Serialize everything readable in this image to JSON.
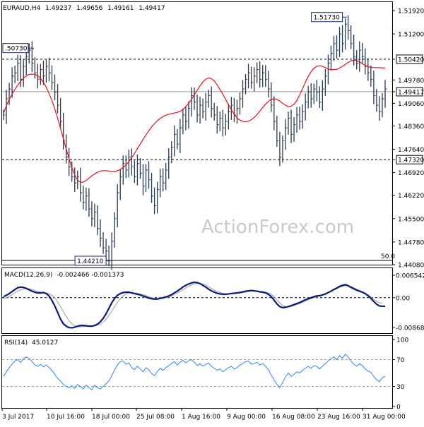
{
  "chart_data": [
    {
      "type": "line",
      "panel": "price",
      "title": "EURAUD,H4",
      "ohlc": {
        "open": "1.49237",
        "high": "1.49656",
        "low": "1.49161",
        "close": "1.49417"
      },
      "y_tick_labels": [
        "1.51920",
        "1.51200",
        "1.50420",
        "1.49780",
        "1.49417",
        "1.49060",
        "1.48360",
        "1.47640",
        "1.47320",
        "1.46920",
        "1.46220",
        "1.45500",
        "1.44780",
        "1.44080"
      ],
      "ylim": [
        1.4408,
        1.5192
      ],
      "fib_label": "50.0",
      "levels": [
        {
          "label": "1.50420",
          "value": 1.5042,
          "style": "dashed"
        },
        {
          "label": "1.47320",
          "value": 1.4732,
          "style": "dashed"
        },
        {
          "label": "1.49417",
          "value": 1.49417,
          "style": "solid"
        }
      ],
      "annotations": [
        {
          "label": "1.51730",
          "x_index": 120,
          "value": 1.5173
        },
        {
          "label": ".50730",
          "x_index": 10,
          "value": 1.5073
        },
        {
          "label": "1.44210",
          "x_index": 37,
          "value": 1.4421
        }
      ],
      "series": [
        {
          "kind": "close",
          "values": [
            1.487,
            1.492,
            1.495,
            1.499,
            1.5,
            1.503,
            1.498,
            1.502,
            1.505,
            1.507,
            1.503,
            1.5,
            1.498,
            1.501,
            1.499,
            1.502,
            1.5,
            1.497,
            1.494,
            1.49,
            1.485,
            1.479,
            1.474,
            1.471,
            1.468,
            1.466,
            1.468,
            1.463,
            1.46,
            1.462,
            1.458,
            1.455,
            1.457,
            1.452,
            1.449,
            1.446,
            1.445,
            1.442,
            1.448,
            1.455,
            1.463,
            1.468,
            1.472,
            1.47,
            1.474,
            1.471,
            1.468,
            1.472,
            1.469,
            1.465,
            1.47,
            1.467,
            1.462,
            1.459,
            1.464,
            1.468,
            1.466,
            1.47,
            1.474,
            1.477,
            1.481,
            1.478,
            1.483,
            1.487,
            1.485,
            1.489,
            1.493,
            1.491,
            1.487,
            1.49,
            1.488,
            1.491,
            1.493,
            1.489,
            1.487,
            1.484,
            1.486,
            1.483,
            1.485,
            1.488,
            1.49,
            1.487,
            1.489,
            1.492,
            1.495,
            1.498,
            1.5,
            1.497,
            1.499,
            1.501,
            1.498,
            1.5,
            1.498,
            1.495,
            1.49,
            1.485,
            1.479,
            1.474,
            1.479,
            1.483,
            1.486,
            1.481,
            1.484,
            1.487,
            1.485,
            1.488,
            1.491,
            1.494,
            1.492,
            1.495,
            1.494,
            1.491,
            1.495,
            1.499,
            1.503,
            1.506,
            1.509,
            1.507,
            1.512,
            1.509,
            1.515,
            1.513,
            1.509,
            1.505,
            1.503,
            1.507,
            1.505,
            1.502,
            1.5,
            1.498,
            1.493,
            1.49,
            1.488,
            1.492,
            1.495
          ]
        },
        {
          "name": "MA",
          "kind": "moving-average",
          "color": "#e8101c",
          "values": [
            1.4875,
            1.4899,
            1.4918,
            1.4934,
            1.4949,
            1.4962,
            1.4974,
            1.4983,
            1.4991,
            1.4995,
            1.4996,
            1.4995,
            1.4991,
            1.4983,
            1.4971,
            1.4955,
            1.4936,
            1.4914,
            1.4888,
            1.486,
            1.4829,
            1.4797,
            1.4765,
            1.4735,
            1.4708,
            1.4685,
            1.4669,
            1.4662,
            1.4663,
            1.4668,
            1.4675,
            1.4682,
            1.4688,
            1.4693,
            1.4697,
            1.4698,
            1.4698,
            1.4697,
            1.4695,
            1.4695,
            1.4698,
            1.4702,
            1.4708,
            1.4716,
            1.4726,
            1.4738,
            1.4751,
            1.4766,
            1.478,
            1.4795,
            1.4808,
            1.4821,
            1.4833,
            1.4843,
            1.4852,
            1.4859,
            1.4865,
            1.4869,
            1.4872,
            1.4874,
            1.4876,
            1.4878,
            1.4881,
            1.4887,
            1.4896,
            1.4906,
            1.4918,
            1.4932,
            1.4946,
            1.496,
            1.4972,
            1.498,
            1.4984,
            1.4982,
            1.4975,
            1.4963,
            1.4949,
            1.4934,
            1.4918,
            1.4902,
            1.4886,
            1.4872,
            1.4861,
            1.4854,
            1.485,
            1.4849,
            1.4851,
            1.4855,
            1.4862,
            1.4871,
            1.4882,
            1.4893,
            1.4903,
            1.4912,
            1.4918,
            1.492,
            1.4918,
            1.4913,
            1.4906,
            1.49,
            1.4896,
            1.4897,
            1.4903,
            1.4915,
            1.4932,
            1.4951,
            1.4971,
            1.4989,
            1.5004,
            1.5014,
            1.502,
            1.5022,
            1.502,
            1.5016,
            1.5012,
            1.501,
            1.501,
            1.5011,
            1.5015,
            1.502,
            1.5026,
            1.5032,
            1.5037,
            1.5039,
            1.5038,
            1.5034,
            1.5028,
            1.5023,
            1.5019,
            1.5017,
            1.5016,
            1.5016,
            1.5016,
            1.5015,
            1.5015
          ]
        }
      ]
    },
    {
      "type": "line",
      "panel": "macd",
      "title": "MACD(12,26,9)",
      "readout": "-0.002466 -0.001373",
      "y_tick_labels": [
        "0.006542",
        "0.00",
        "-0.008684"
      ],
      "ylim": [
        -0.008684,
        0.006542
      ],
      "series": [
        {
          "name": "MACD",
          "kind": "main",
          "color": "#0a1a7a",
          "values": [
            0.0003,
            0.0007,
            0.0012,
            0.0018,
            0.0024,
            0.0029,
            0.0031,
            0.003,
            0.0027,
            0.0023,
            0.0019,
            0.0016,
            0.0014,
            0.0014,
            0.0015,
            0.0012,
            0.0005,
            -0.0008,
            -0.0024,
            -0.0043,
            -0.0062,
            -0.0076,
            -0.0083,
            -0.0087,
            -0.0088,
            -0.0086,
            -0.0083,
            -0.0081,
            -0.0081,
            -0.0082,
            -0.0083,
            -0.0083,
            -0.0081,
            -0.0077,
            -0.007,
            -0.006,
            -0.0047,
            -0.0031,
            -0.0015,
            -0.0002,
            0.0007,
            0.0012,
            0.0015,
            0.0016,
            0.0016,
            0.0014,
            0.0012,
            0.001,
            0.0008,
            0.0005,
            0.0002,
            -0.0001,
            -0.0003,
            -0.0004,
            -0.0004,
            -0.0002,
            0.0,
            0.0002,
            0.0005,
            0.0009,
            0.0014,
            0.0019,
            0.0025,
            0.0031,
            0.0036,
            0.004,
            0.0043,
            0.0045,
            0.0044,
            0.0041,
            0.0036,
            0.0031,
            0.0025,
            0.002,
            0.0016,
            0.0013,
            0.0011,
            0.001,
            0.001,
            0.0011,
            0.0012,
            0.0013,
            0.0014,
            0.0015,
            0.0017,
            0.0019,
            0.002,
            0.0021,
            0.002,
            0.0019,
            0.0017,
            0.0016,
            0.0014,
            0.001,
            0.0003,
            -0.0007,
            -0.0018,
            -0.0026,
            -0.0029,
            -0.0028,
            -0.0026,
            -0.0023,
            -0.002,
            -0.0017,
            -0.0014,
            -0.001,
            -0.0006,
            -0.0003,
            0.0,
            0.0003,
            0.0005,
            0.0006,
            0.0008,
            0.0011,
            0.0015,
            0.0019,
            0.0024,
            0.0028,
            0.0033,
            0.0036,
            0.0038,
            0.0035,
            0.003,
            0.0026,
            0.0022,
            0.0019,
            0.0016,
            0.0012,
            0.0006,
            -0.0002,
            -0.0011,
            -0.0019,
            -0.0024,
            -0.0025,
            -0.0025
          ]
        },
        {
          "name": "Signal",
          "kind": "signal",
          "color": "#9a9aa6",
          "values": [
            -0.0004,
            0.0,
            0.0004,
            0.0009,
            0.0014,
            0.0019,
            0.0023,
            0.0026,
            0.0027,
            0.0026,
            0.0024,
            0.0021,
            0.0018,
            0.0016,
            0.0015,
            0.0014,
            0.0012,
            0.0007,
            -0.0001,
            -0.0012,
            -0.0026,
            -0.0041,
            -0.0055,
            -0.0067,
            -0.0076,
            -0.0082,
            -0.0085,
            -0.0085,
            -0.0084,
            -0.0083,
            -0.0082,
            -0.0082,
            -0.0082,
            -0.008,
            -0.0077,
            -0.0071,
            -0.0063,
            -0.0052,
            -0.0039,
            -0.0026,
            -0.0013,
            -0.0003,
            0.0005,
            0.0011,
            0.0014,
            0.0015,
            0.0014,
            0.0013,
            0.0011,
            0.0009,
            0.0006,
            0.0003,
            0.0,
            -0.0002,
            -0.0003,
            -0.0003,
            -0.0002,
            0.0,
            0.0002,
            0.0005,
            0.0009,
            0.0013,
            0.0018,
            0.0023,
            0.0028,
            0.0033,
            0.0037,
            0.004,
            0.0042,
            0.0042,
            0.004,
            0.0037,
            0.0032,
            0.0027,
            0.0022,
            0.0018,
            0.0015,
            0.0013,
            0.0012,
            0.0011,
            0.0011,
            0.0012,
            0.0013,
            0.0014,
            0.0015,
            0.0016,
            0.0018,
            0.0019,
            0.002,
            0.002,
            0.0019,
            0.0018,
            0.0016,
            0.0014,
            0.001,
            0.0003,
            -0.0006,
            -0.0015,
            -0.0022,
            -0.0026,
            -0.0027,
            -0.0026,
            -0.0023,
            -0.002,
            -0.0017,
            -0.0014,
            -0.001,
            -0.0006,
            -0.0003,
            0.0,
            0.0003,
            0.0005,
            0.0007,
            0.001,
            0.0014,
            0.0018,
            0.0022,
            0.0026,
            0.003,
            0.0033,
            0.0035,
            0.0035,
            0.0033,
            0.0029,
            0.0025,
            0.0021,
            0.0017,
            0.0013,
            0.0008,
            0.0002,
            -0.0005,
            -0.0011,
            -0.0015,
            -0.0016
          ]
        }
      ]
    },
    {
      "type": "line",
      "panel": "rsi",
      "title": "RSI(14)",
      "readout": "45.0127",
      "y_tick_labels": [
        "100",
        "70",
        "30",
        "0"
      ],
      "ylim": [
        0,
        100
      ],
      "levels": [
        {
          "label": "70",
          "value": 70
        },
        {
          "label": "30",
          "value": 30
        }
      ],
      "series": [
        {
          "name": "RSI",
          "color": "#2b86ff",
          "values": [
            45,
            52,
            58,
            63,
            68,
            70,
            66,
            71,
            74,
            72,
            67,
            62,
            60,
            63,
            59,
            62,
            58,
            54,
            48,
            42,
            38,
            33,
            30,
            28,
            31,
            27,
            33,
            30,
            26,
            32,
            28,
            25,
            32,
            28,
            26,
            30,
            34,
            38,
            46,
            55,
            62,
            67,
            68,
            63,
            65,
            58,
            55,
            60,
            56,
            52,
            58,
            55,
            49,
            46,
            52,
            57,
            54,
            58,
            61,
            64,
            67,
            62,
            66,
            69,
            65,
            68,
            70,
            66,
            61,
            64,
            60,
            63,
            65,
            60,
            57,
            54,
            56,
            52,
            55,
            58,
            60,
            56,
            58,
            62,
            64,
            67,
            68,
            63,
            64,
            66,
            62,
            64,
            60,
            55,
            47,
            40,
            33,
            28,
            36,
            44,
            50,
            45,
            48,
            52,
            50,
            54,
            57,
            60,
            57,
            61,
            60,
            56,
            60,
            64,
            68,
            71,
            74,
            70,
            76,
            72,
            78,
            74,
            68,
            63,
            60,
            64,
            61,
            56,
            53,
            51,
            45,
            40,
            37,
            43,
            45
          ]
        }
      ]
    }
  ],
  "x_tick_labels": [
    "3 Jul 2017",
    "10 Jul 16:00",
    "18 Jul 00:00",
    "25 Jul 08:00",
    "1 Aug 16:00",
    "9 Aug 00:00",
    "16 Aug 08:00",
    "23 Aug 16:00",
    "31 Aug 00:00"
  ],
  "watermark": "ActionForex.com",
  "colors": {
    "price": "#2a3a4e",
    "ma": "#e8101c",
    "macd": "#0a1a7a",
    "signal": "#9a9aa6",
    "rsi": "#2b86ff"
  }
}
